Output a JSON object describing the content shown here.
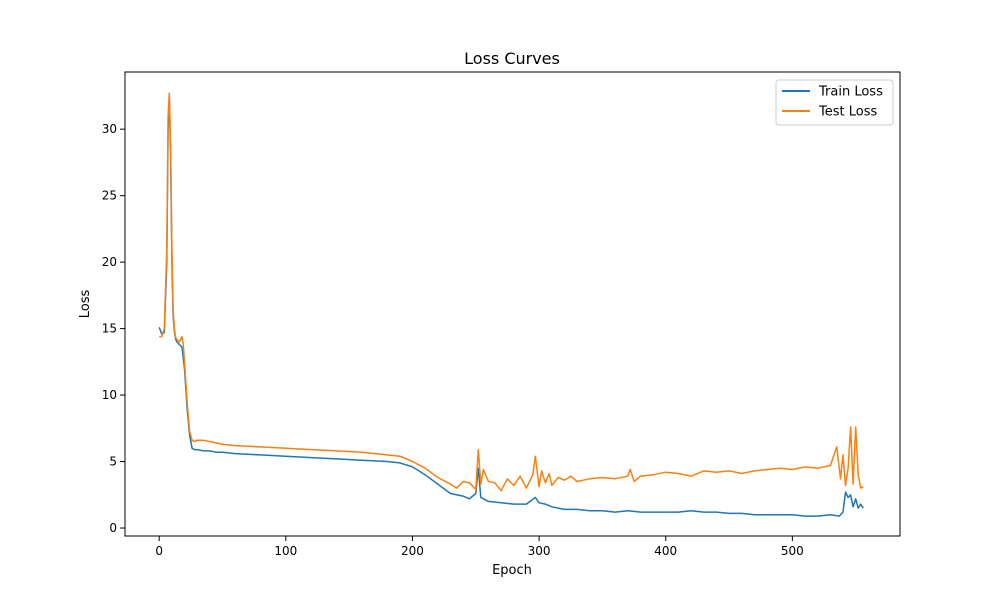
{
  "chart_data": {
    "type": "line",
    "title": "Loss Curves",
    "xlabel": "Epoch",
    "ylabel": "Loss",
    "xlim": [
      -27,
      585
    ],
    "ylim": [
      -0.6,
      34.3
    ],
    "xticks": [
      0,
      100,
      200,
      300,
      400,
      500
    ],
    "yticks": [
      0,
      5,
      10,
      15,
      20,
      25,
      30
    ],
    "grid": false,
    "legend_position": "top-right",
    "series": [
      {
        "name": "Train Loss",
        "color": "#1f77b4",
        "x": [
          0,
          2,
          4,
          6,
          7,
          8,
          9,
          10,
          11,
          12,
          13,
          14,
          16,
          18,
          20,
          22,
          24,
          26,
          28,
          30,
          35,
          40,
          45,
          50,
          60,
          80,
          100,
          120,
          140,
          160,
          180,
          190,
          200,
          210,
          220,
          230,
          240,
          245,
          250,
          252,
          254,
          256,
          260,
          270,
          280,
          290,
          297,
          300,
          305,
          310,
          320,
          330,
          340,
          350,
          360,
          370,
          380,
          390,
          400,
          410,
          420,
          430,
          440,
          450,
          460,
          470,
          480,
          490,
          500,
          510,
          520,
          530,
          537,
          540,
          542,
          544,
          546,
          548,
          550,
          552,
          554,
          556
        ],
        "y": [
          15.1,
          14.6,
          14.7,
          20.0,
          30.0,
          32.6,
          28.0,
          20.0,
          16.0,
          14.8,
          14.2,
          14.0,
          13.8,
          13.6,
          12.0,
          9.0,
          7.0,
          6.0,
          5.9,
          5.9,
          5.8,
          5.8,
          5.7,
          5.7,
          5.6,
          5.5,
          5.4,
          5.3,
          5.2,
          5.1,
          5.0,
          4.9,
          4.6,
          4.0,
          3.3,
          2.6,
          2.4,
          2.2,
          2.6,
          4.5,
          2.3,
          2.2,
          2.0,
          1.9,
          1.8,
          1.8,
          2.3,
          1.9,
          1.8,
          1.6,
          1.4,
          1.4,
          1.3,
          1.3,
          1.2,
          1.3,
          1.2,
          1.2,
          1.2,
          1.2,
          1.3,
          1.2,
          1.2,
          1.1,
          1.1,
          1.0,
          1.0,
          1.0,
          1.0,
          0.9,
          0.9,
          1.0,
          0.9,
          1.2,
          2.7,
          2.3,
          2.5,
          1.6,
          2.2,
          1.5,
          1.8,
          1.5
        ]
      },
      {
        "name": "Test Loss",
        "color": "#ff7f0e",
        "x": [
          0,
          2,
          4,
          6,
          7,
          8,
          9,
          10,
          11,
          12,
          13,
          14,
          16,
          18,
          19,
          20,
          22,
          24,
          26,
          28,
          30,
          35,
          40,
          45,
          50,
          60,
          80,
          100,
          120,
          140,
          160,
          180,
          190,
          200,
          210,
          220,
          230,
          235,
          240,
          245,
          250,
          252,
          254,
          256,
          260,
          265,
          270,
          275,
          280,
          285,
          290,
          295,
          297,
          300,
          302,
          305,
          308,
          310,
          315,
          320,
          325,
          330,
          340,
          350,
          360,
          370,
          372,
          375,
          380,
          390,
          400,
          410,
          420,
          430,
          440,
          450,
          460,
          470,
          480,
          490,
          500,
          510,
          520,
          530,
          535,
          538,
          540,
          542,
          544,
          546,
          548,
          550,
          552,
          554,
          556
        ],
        "y": [
          14.4,
          14.4,
          15.0,
          21.0,
          31.0,
          32.7,
          29.0,
          21.0,
          16.5,
          15.0,
          14.3,
          14.2,
          14.0,
          14.4,
          13.8,
          12.5,
          9.5,
          7.3,
          6.6,
          6.5,
          6.6,
          6.6,
          6.5,
          6.4,
          6.3,
          6.2,
          6.1,
          6.0,
          5.9,
          5.8,
          5.7,
          5.5,
          5.4,
          5.0,
          4.5,
          3.8,
          3.3,
          3.0,
          3.5,
          3.4,
          2.9,
          5.9,
          3.3,
          4.4,
          3.5,
          3.4,
          2.8,
          3.7,
          3.2,
          3.9,
          3.0,
          4.0,
          5.4,
          3.1,
          4.3,
          3.4,
          4.1,
          3.2,
          3.8,
          3.6,
          3.9,
          3.5,
          3.7,
          3.8,
          3.7,
          3.9,
          4.4,
          3.5,
          3.9,
          4.0,
          4.2,
          4.1,
          3.9,
          4.3,
          4.2,
          4.3,
          4.1,
          4.3,
          4.4,
          4.5,
          4.4,
          4.6,
          4.5,
          4.7,
          6.1,
          3.7,
          5.5,
          3.2,
          4.5,
          7.6,
          3.3,
          7.6,
          4.0,
          3.0,
          3.1
        ]
      }
    ]
  }
}
